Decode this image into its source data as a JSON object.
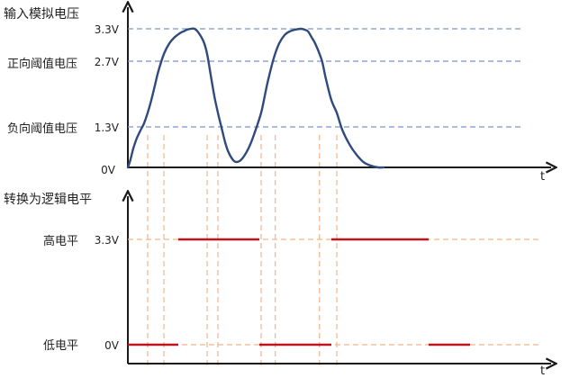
{
  "colors": {
    "axis": "#1a1a1a",
    "waveform": "#2f4a7c",
    "threshold_line": "#7a93cc",
    "guide_line": "#f2b48a",
    "digital_output": "#c0141c"
  },
  "top_plot": {
    "ylabel": "输入模拟电压",
    "xlabel": "t",
    "ticks": {
      "v33": "3.3V",
      "v27": "2.7V",
      "v13": "1.3V",
      "v0": "0V"
    },
    "threshold_labels": {
      "positive": "正向阈值电压",
      "negative": "负向阈值电压"
    }
  },
  "bottom_plot": {
    "ylabel": "转换为逻辑电平",
    "xlabel": "t",
    "ticks": {
      "high": "3.3V",
      "low": "0V"
    },
    "level_labels": {
      "high": "高电平",
      "low": "低电平"
    }
  },
  "chart_data": {
    "type": "line",
    "x_unit": "t",
    "analog_voltage": {
      "x": [
        0,
        2,
        4,
        6,
        8,
        10,
        14,
        18,
        22,
        26,
        30,
        34,
        40,
        46,
        52,
        58,
        62,
        66,
        70,
        74,
        78,
        84,
        88,
        92,
        96,
        100,
        104,
        108,
        112,
        118,
        124,
        130,
        136,
        142,
        148,
        152,
        156,
        162,
        168,
        174,
        180,
        186,
        192,
        196,
        200,
        204,
        208,
        212,
        216,
        220,
        226,
        232,
        238,
        246,
        254,
        262,
        270,
        278,
        284
      ],
      "y": [
        0,
        0.12,
        0.28,
        0.45,
        0.58,
        0.7,
        0.88,
        1.05,
        1.3,
        1.6,
        1.95,
        2.3,
        2.7,
        2.95,
        3.1,
        3.2,
        3.24,
        3.28,
        3.3,
        3.3,
        3.22,
        3.0,
        2.7,
        2.2,
        1.7,
        1.3,
        0.95,
        0.6,
        0.35,
        0.15,
        0.15,
        0.3,
        0.55,
        0.9,
        1.3,
        1.7,
        2.1,
        2.6,
        2.95,
        3.15,
        3.24,
        3.28,
        3.3,
        3.28,
        3.24,
        3.1,
        2.95,
        2.75,
        2.5,
        2.1,
        1.6,
        1.3,
        0.9,
        0.55,
        0.3,
        0.12,
        0.04,
        0,
        0
      ]
    },
    "thresholds": {
      "positive": 2.7,
      "negative": 1.3
    },
    "logic_output": {
      "segments": [
        {
          "x_start": 0,
          "x_end": 56,
          "level": 0
        },
        {
          "x_start": 56,
          "x_end": 146,
          "level": 3.3
        },
        {
          "x_start": 146,
          "x_end": 226,
          "level": 0
        },
        {
          "x_start": 226,
          "x_end": 334,
          "level": 3.3
        },
        {
          "x_start": 334,
          "x_end": 380,
          "level": 0
        }
      ]
    },
    "ylim": [
      0,
      3.3
    ]
  }
}
